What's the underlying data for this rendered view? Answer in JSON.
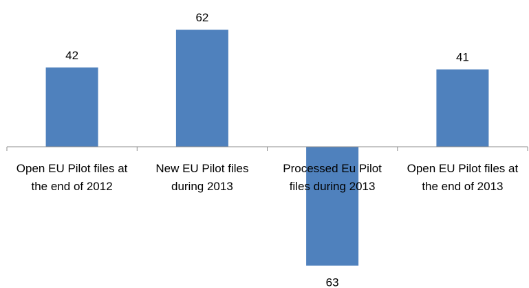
{
  "chart_data": {
    "type": "bar",
    "title": "",
    "xlabel": "",
    "ylabel": "",
    "categories": [
      "Open EU Pilot files at the end of 2012",
      "New EU Pilot files during 2013",
      "Processed Eu Pilot files during 2013",
      "Open EU Pilot files at the end of 2013"
    ],
    "category_lines": [
      [
        "Open EU Pilot files at",
        "the end of 2012"
      ],
      [
        "New EU Pilot files",
        "during 2013"
      ],
      [
        "Processed Eu Pilot",
        "files during 2013"
      ],
      [
        "Open EU Pilot files at",
        "the end of 2013"
      ]
    ],
    "values": [
      42,
      62,
      -63,
      41
    ],
    "value_labels": [
      "42",
      "62",
      "63",
      "41"
    ],
    "ylim": [
      -63,
      62
    ],
    "grid": false,
    "legend": "none"
  },
  "colors": {
    "bar": "#4F81BD",
    "axis": "#8C8C8C",
    "text": "#000000"
  }
}
